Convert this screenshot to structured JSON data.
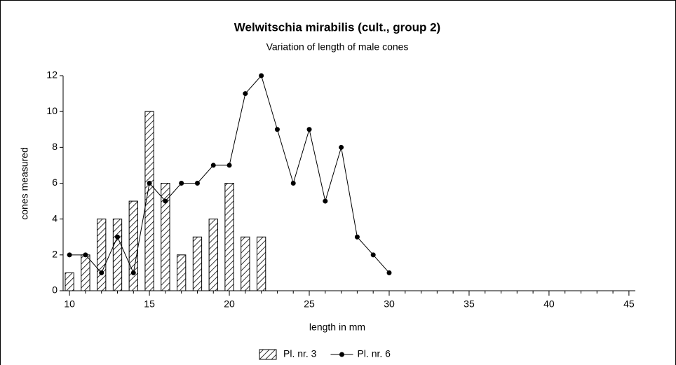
{
  "chart_data": {
    "type": "bar",
    "title": "Welwitschia mirabilis (cult., group 2)",
    "subtitle": "Variation of length of male cones",
    "x_label": "length in mm",
    "y_label": "cones measured",
    "xlim": [
      9.6,
      45.4
    ],
    "xticks": [
      10,
      15,
      20,
      25,
      30,
      35,
      40,
      45
    ],
    "ylim": [
      0,
      12
    ],
    "yticks": [
      0,
      2,
      4,
      6,
      8,
      10,
      12
    ],
    "legend": "bottom",
    "series": [
      {
        "name": "Pl. nr. 3",
        "type": "bar",
        "color": "#000000",
        "x": [
          10,
          11,
          12,
          13,
          14,
          15,
          16,
          17,
          18,
          19,
          20,
          21,
          22
        ],
        "values": [
          1,
          2,
          4,
          4,
          5,
          10,
          6,
          2,
          3,
          4,
          6,
          3,
          3
        ]
      },
      {
        "name": "Pl. nr. 6",
        "type": "line",
        "color": "#000000",
        "x": [
          10,
          11,
          12,
          13,
          14,
          15,
          16,
          17,
          18,
          19,
          20,
          21,
          22,
          23,
          24,
          25,
          26,
          27,
          28,
          29,
          30
        ],
        "values": [
          2,
          2,
          1,
          3,
          1,
          6,
          5,
          6,
          6,
          7,
          7,
          11,
          12,
          9,
          6,
          9,
          5,
          8,
          3,
          2,
          1
        ]
      }
    ]
  }
}
